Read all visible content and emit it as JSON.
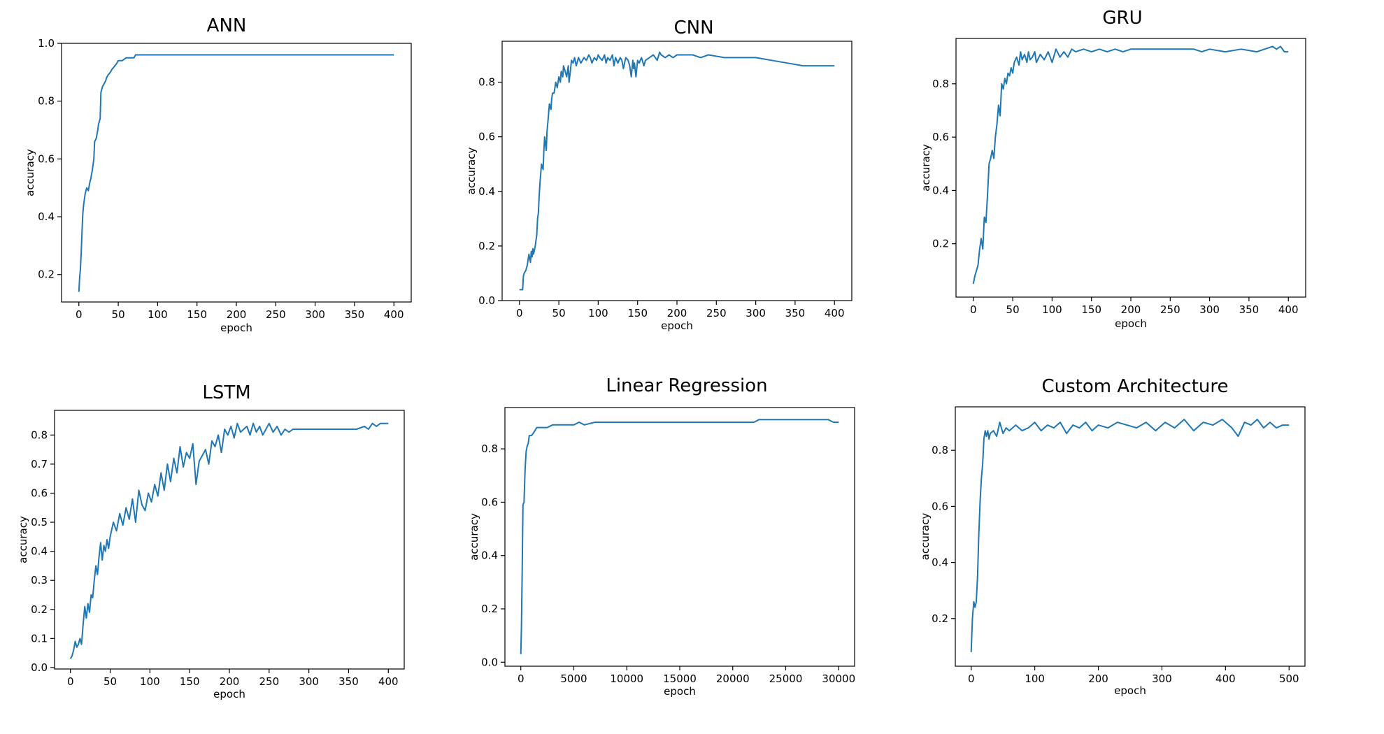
{
  "colors": {
    "line": "#1f77b4",
    "axis": "#000000",
    "background": "#ffffff"
  },
  "chart_data": [
    {
      "type": "line",
      "title": "ANN",
      "xlabel": "epoch",
      "ylabel": "accuracy",
      "xlim": [
        -22,
        422
      ],
      "ylim": [
        0.105,
        1.0
      ],
      "xticks": [
        0,
        50,
        100,
        150,
        200,
        250,
        300,
        350,
        400
      ],
      "yticks": [
        0.2,
        0.4,
        0.6,
        0.8,
        1.0
      ],
      "ytick_labels": [
        "0.2",
        "0.4",
        "0.6",
        "0.8",
        "1.0"
      ],
      "legend": "none",
      "grid": false,
      "series": [
        {
          "x": [
            0,
            1,
            2,
            3,
            4,
            5,
            6,
            8,
            10,
            12,
            14,
            15,
            17,
            19,
            20,
            22,
            24,
            25,
            27,
            28,
            29,
            30,
            32,
            34,
            35,
            37,
            40,
            42,
            45,
            48,
            50,
            52,
            55,
            60,
            63,
            65,
            70,
            72,
            75,
            80,
            100,
            200,
            300,
            400
          ],
          "y": [
            0.14,
            0.19,
            0.22,
            0.28,
            0.35,
            0.41,
            0.44,
            0.48,
            0.5,
            0.49,
            0.52,
            0.53,
            0.56,
            0.6,
            0.66,
            0.67,
            0.7,
            0.72,
            0.74,
            0.83,
            0.84,
            0.85,
            0.86,
            0.87,
            0.88,
            0.89,
            0.9,
            0.91,
            0.92,
            0.93,
            0.94,
            0.94,
            0.94,
            0.95,
            0.95,
            0.95,
            0.95,
            0.96,
            0.96,
            0.96,
            0.96,
            0.96,
            0.96,
            0.96
          ]
        }
      ]
    },
    {
      "type": "line",
      "title": "CNN",
      "xlabel": "epoch",
      "ylabel": "accuracy",
      "xlim": [
        -22,
        422
      ],
      "ylim": [
        0,
        0.95
      ],
      "xticks": [
        0,
        50,
        100,
        150,
        200,
        250,
        300,
        350,
        400
      ],
      "yticks": [
        0,
        0.2,
        0.4,
        0.6,
        0.8
      ],
      "ytick_labels": [
        "0.0",
        "0.2",
        "0.4",
        "0.6",
        "0.8"
      ],
      "legend": "none",
      "grid": false,
      "series": [
        {
          "x": [
            0,
            2,
            4,
            5,
            6,
            8,
            10,
            12,
            14,
            15,
            16,
            17,
            18,
            20,
            22,
            23,
            24,
            25,
            26,
            28,
            30,
            31,
            32,
            34,
            35,
            36,
            38,
            40,
            41,
            42,
            44,
            45,
            46,
            48,
            50,
            52,
            53,
            55,
            56,
            58,
            60,
            62,
            63,
            65,
            66,
            68,
            70,
            72,
            75,
            78,
            80,
            82,
            85,
            88,
            90,
            92,
            95,
            98,
            100,
            102,
            105,
            108,
            110,
            112,
            115,
            118,
            120,
            122,
            125,
            128,
            130,
            132,
            135,
            138,
            140,
            142,
            144,
            145,
            146,
            148,
            150,
            152,
            155,
            158,
            160,
            165,
            170,
            175,
            178,
            180,
            185,
            190,
            195,
            200,
            210,
            220,
            230,
            240,
            260,
            300,
            320,
            340,
            360,
            380,
            400
          ],
          "y": [
            0.04,
            0.04,
            0.04,
            0.09,
            0.1,
            0.11,
            0.13,
            0.17,
            0.14,
            0.18,
            0.16,
            0.19,
            0.17,
            0.2,
            0.24,
            0.3,
            0.32,
            0.38,
            0.43,
            0.5,
            0.48,
            0.55,
            0.6,
            0.55,
            0.62,
            0.65,
            0.72,
            0.7,
            0.74,
            0.76,
            0.76,
            0.78,
            0.8,
            0.78,
            0.82,
            0.8,
            0.84,
            0.82,
            0.86,
            0.84,
            0.82,
            0.86,
            0.8,
            0.85,
            0.88,
            0.87,
            0.89,
            0.86,
            0.89,
            0.87,
            0.88,
            0.89,
            0.88,
            0.9,
            0.89,
            0.87,
            0.89,
            0.88,
            0.9,
            0.89,
            0.88,
            0.9,
            0.87,
            0.89,
            0.88,
            0.9,
            0.86,
            0.89,
            0.87,
            0.89,
            0.88,
            0.85,
            0.89,
            0.88,
            0.86,
            0.82,
            0.88,
            0.85,
            0.87,
            0.82,
            0.88,
            0.87,
            0.89,
            0.86,
            0.88,
            0.89,
            0.9,
            0.88,
            0.91,
            0.9,
            0.89,
            0.9,
            0.89,
            0.9,
            0.9,
            0.9,
            0.89,
            0.9,
            0.89,
            0.89,
            0.88,
            0.87,
            0.86,
            0.86,
            0.86
          ]
        }
      ]
    },
    {
      "type": "line",
      "title": "GRU",
      "xlabel": "epoch",
      "ylabel": "accuracy",
      "xlim": [
        -22,
        422
      ],
      "ylim": [
        0.0,
        0.97
      ],
      "xticks": [
        0,
        50,
        100,
        150,
        200,
        250,
        300,
        350,
        400
      ],
      "yticks": [
        0.2,
        0.4,
        0.6,
        0.8
      ],
      "ytick_labels": [
        "0.2",
        "0.4",
        "0.6",
        "0.8"
      ],
      "legend": "none",
      "grid": false,
      "series": [
        {
          "x": [
            0,
            2,
            4,
            6,
            8,
            10,
            12,
            14,
            16,
            18,
            20,
            22,
            24,
            26,
            28,
            30,
            32,
            34,
            35,
            36,
            38,
            40,
            42,
            44,
            46,
            48,
            50,
            52,
            55,
            58,
            60,
            62,
            65,
            68,
            70,
            72,
            75,
            78,
            80,
            85,
            90,
            95,
            100,
            105,
            110,
            115,
            120,
            125,
            130,
            140,
            150,
            160,
            170,
            180,
            190,
            200,
            220,
            240,
            260,
            280,
            290,
            300,
            320,
            340,
            360,
            380,
            385,
            390,
            395,
            400
          ],
          "y": [
            0.05,
            0.08,
            0.1,
            0.12,
            0.18,
            0.22,
            0.18,
            0.3,
            0.28,
            0.38,
            0.5,
            0.52,
            0.55,
            0.52,
            0.6,
            0.65,
            0.72,
            0.68,
            0.74,
            0.8,
            0.78,
            0.82,
            0.8,
            0.84,
            0.83,
            0.86,
            0.84,
            0.88,
            0.9,
            0.87,
            0.92,
            0.89,
            0.91,
            0.88,
            0.92,
            0.89,
            0.9,
            0.92,
            0.88,
            0.91,
            0.89,
            0.92,
            0.88,
            0.93,
            0.9,
            0.92,
            0.9,
            0.93,
            0.92,
            0.93,
            0.92,
            0.93,
            0.92,
            0.93,
            0.92,
            0.93,
            0.93,
            0.93,
            0.93,
            0.93,
            0.92,
            0.93,
            0.92,
            0.93,
            0.92,
            0.94,
            0.93,
            0.94,
            0.92,
            0.92
          ]
        }
      ]
    },
    {
      "type": "line",
      "title": "LSTM",
      "xlabel": "epoch",
      "ylabel": "accuracy",
      "xlim": [
        -20,
        420
      ],
      "ylim": [
        -0.005,
        0.885
      ],
      "xticks": [
        0,
        50,
        100,
        150,
        200,
        250,
        300,
        350,
        400
      ],
      "yticks": [
        0.0,
        0.1,
        0.2,
        0.3,
        0.4,
        0.5,
        0.6,
        0.7,
        0.8
      ],
      "ytick_labels": [
        "0.0",
        "0.1",
        "0.2",
        "0.3",
        "0.4",
        "0.5",
        "0.6",
        "0.7",
        "0.8"
      ],
      "legend": "none",
      "grid": false,
      "series": [
        {
          "x": [
            0,
            2,
            4,
            6,
            8,
            10,
            12,
            14,
            16,
            18,
            20,
            22,
            24,
            26,
            28,
            30,
            32,
            34,
            36,
            38,
            40,
            42,
            44,
            46,
            48,
            50,
            54,
            58,
            62,
            66,
            70,
            74,
            78,
            82,
            86,
            90,
            94,
            98,
            102,
            106,
            110,
            114,
            118,
            122,
            126,
            130,
            134,
            138,
            142,
            146,
            150,
            154,
            158,
            162,
            166,
            170,
            174,
            178,
            182,
            186,
            190,
            194,
            198,
            202,
            206,
            210,
            214,
            218,
            222,
            226,
            230,
            234,
            238,
            242,
            246,
            250,
            255,
            260,
            265,
            270,
            275,
            280,
            290,
            300,
            310,
            320,
            340,
            360,
            370,
            375,
            380,
            385,
            390,
            400
          ],
          "y": [
            0.03,
            0.04,
            0.06,
            0.09,
            0.07,
            0.08,
            0.1,
            0.08,
            0.15,
            0.21,
            0.17,
            0.22,
            0.19,
            0.25,
            0.24,
            0.3,
            0.35,
            0.32,
            0.38,
            0.43,
            0.37,
            0.42,
            0.4,
            0.44,
            0.41,
            0.45,
            0.5,
            0.47,
            0.53,
            0.49,
            0.55,
            0.51,
            0.58,
            0.5,
            0.61,
            0.56,
            0.54,
            0.6,
            0.57,
            0.63,
            0.59,
            0.67,
            0.61,
            0.7,
            0.64,
            0.72,
            0.67,
            0.76,
            0.69,
            0.74,
            0.72,
            0.77,
            0.63,
            0.71,
            0.73,
            0.75,
            0.7,
            0.78,
            0.76,
            0.8,
            0.74,
            0.82,
            0.8,
            0.83,
            0.79,
            0.84,
            0.81,
            0.82,
            0.83,
            0.8,
            0.84,
            0.81,
            0.83,
            0.8,
            0.82,
            0.84,
            0.81,
            0.83,
            0.8,
            0.82,
            0.81,
            0.82,
            0.82,
            0.82,
            0.82,
            0.82,
            0.82,
            0.82,
            0.83,
            0.82,
            0.84,
            0.83,
            0.84,
            0.84
          ]
        }
      ]
    },
    {
      "type": "line",
      "title": "Linear Regression",
      "xlabel": "epoch",
      "ylabel": "accuracy",
      "xlim": [
        -1500,
        31500
      ],
      "ylim": [
        -0.015,
        0.955
      ],
      "xticks": [
        0,
        5000,
        10000,
        15000,
        20000,
        25000,
        30000
      ],
      "yticks": [
        0.0,
        0.2,
        0.4,
        0.6,
        0.8
      ],
      "ytick_labels": [
        "0.0",
        "0.2",
        "0.4",
        "0.6",
        "0.8"
      ],
      "legend": "none",
      "grid": false,
      "series": [
        {
          "x": [
            0,
            60,
            120,
            200,
            300,
            400,
            500,
            600,
            700,
            800,
            1000,
            1200,
            1500,
            2000,
            2500,
            3000,
            4000,
            5000,
            5500,
            6000,
            7000,
            10000,
            15000,
            20000,
            22000,
            22500,
            25000,
            28000,
            29000,
            29500,
            30000
          ],
          "y": [
            0.03,
            0.13,
            0.3,
            0.59,
            0.6,
            0.72,
            0.79,
            0.81,
            0.82,
            0.85,
            0.85,
            0.86,
            0.88,
            0.88,
            0.88,
            0.89,
            0.89,
            0.89,
            0.9,
            0.89,
            0.9,
            0.9,
            0.9,
            0.9,
            0.9,
            0.91,
            0.91,
            0.91,
            0.91,
            0.9,
            0.9
          ]
        }
      ]
    },
    {
      "type": "line",
      "title": "Custom Architecture",
      "xlabel": "epoch",
      "ylabel": "accuracy",
      "xlim": [
        -25,
        525
      ],
      "ylim": [
        0.03,
        0.955
      ],
      "xticks": [
        0,
        100,
        200,
        300,
        400,
        500
      ],
      "yticks": [
        0.2,
        0.4,
        0.6,
        0.8
      ],
      "ytick_labels": [
        "0.2",
        "0.4",
        "0.6",
        "0.8"
      ],
      "legend": "none",
      "grid": false,
      "series": [
        {
          "x": [
            0,
            2,
            4,
            6,
            8,
            10,
            12,
            14,
            16,
            18,
            20,
            22,
            24,
            26,
            28,
            30,
            35,
            40,
            45,
            50,
            55,
            60,
            70,
            80,
            90,
            100,
            110,
            120,
            130,
            140,
            150,
            160,
            170,
            180,
            190,
            200,
            215,
            230,
            245,
            260,
            275,
            290,
            305,
            320,
            335,
            350,
            365,
            380,
            395,
            410,
            420,
            430,
            440,
            450,
            460,
            470,
            480,
            490,
            500
          ],
          "y": [
            0.08,
            0.2,
            0.26,
            0.24,
            0.26,
            0.35,
            0.5,
            0.62,
            0.7,
            0.75,
            0.84,
            0.87,
            0.85,
            0.87,
            0.84,
            0.86,
            0.87,
            0.85,
            0.9,
            0.86,
            0.88,
            0.87,
            0.89,
            0.87,
            0.88,
            0.9,
            0.87,
            0.89,
            0.88,
            0.9,
            0.86,
            0.89,
            0.88,
            0.9,
            0.87,
            0.89,
            0.88,
            0.9,
            0.89,
            0.88,
            0.9,
            0.87,
            0.9,
            0.88,
            0.91,
            0.87,
            0.9,
            0.89,
            0.91,
            0.88,
            0.85,
            0.9,
            0.89,
            0.91,
            0.88,
            0.9,
            0.88,
            0.89,
            0.89
          ]
        }
      ]
    }
  ]
}
